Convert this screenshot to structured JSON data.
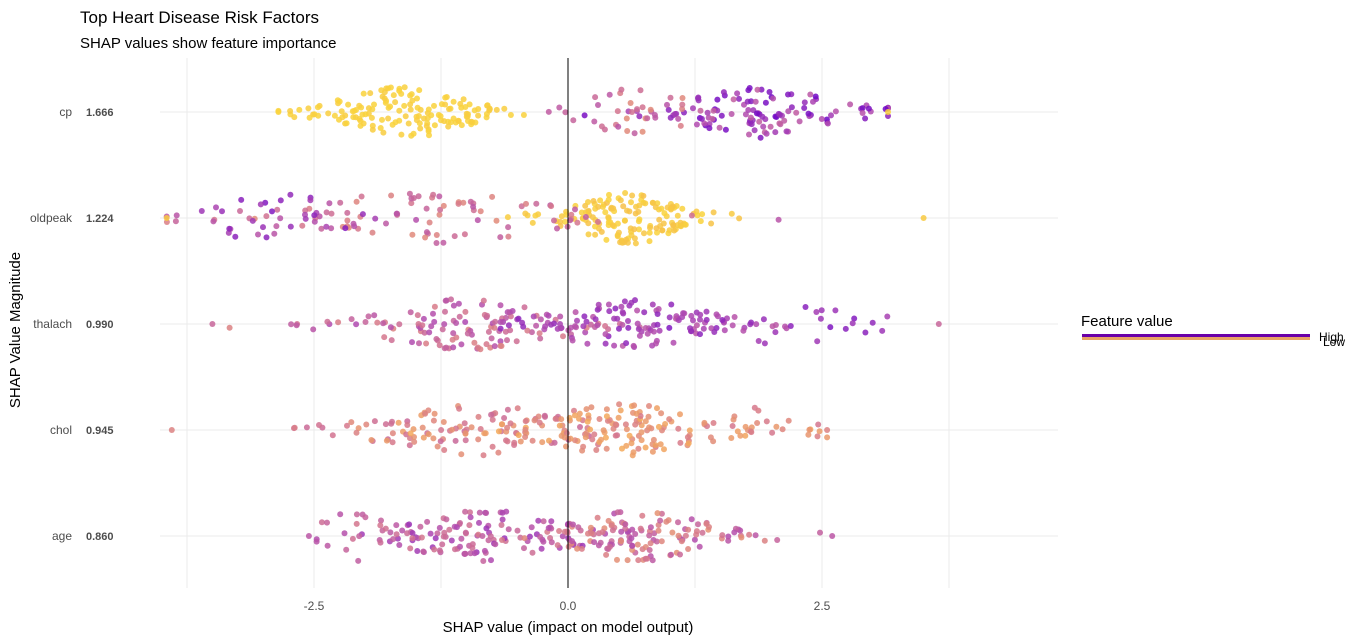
{
  "chart_data": {
    "type": "scatter",
    "title": "Top Heart Disease Risk Factors",
    "subtitle": "SHAP values show feature importance",
    "xlabel": "SHAP value (impact on model output)",
    "ylabel": "SHAP Value Magnitude",
    "xlim": [
      -4.0,
      4.8
    ],
    "x_ticks": [
      -2.5,
      0.0,
      2.5
    ],
    "x_tick_labels": [
      "-2.5",
      "0.0",
      "2.5"
    ],
    "grid": true,
    "zero_line": true,
    "legend": {
      "title": "Feature value",
      "high_label": "High",
      "low_label": "Low",
      "placement": "right",
      "high_color": "#6a00a8",
      "mid_color": "#d6568a",
      "low_color": "#f9d23c"
    },
    "features": [
      {
        "name": "cp",
        "magnitude": "1.666",
        "shap_min": -2.85,
        "shap_max": 3.15,
        "clusters": [
          {
            "center": -1.6,
            "spread": 0.55,
            "count": 150,
            "fv": 0.0,
            "fv_spread": 0.04
          },
          {
            "center": 1.9,
            "spread": 0.6,
            "count": 120,
            "fv": 0.82,
            "fv_spread": 0.18
          },
          {
            "center": 0.7,
            "spread": 0.45,
            "count": 35,
            "fv": 0.55,
            "fv_spread": 0.15
          }
        ]
      },
      {
        "name": "oldpeak",
        "magnitude": "1.224",
        "shap_min": -3.95,
        "shap_max": 3.5,
        "clusters": [
          {
            "center": 0.6,
            "spread": 0.45,
            "count": 150,
            "fv": 0.05,
            "fv_spread": 0.06
          },
          {
            "center": -1.4,
            "spread": 1.1,
            "count": 90,
            "fv": 0.55,
            "fv_spread": 0.15
          },
          {
            "center": -2.9,
            "spread": 0.6,
            "count": 35,
            "fv": 0.8,
            "fv_spread": 0.12
          }
        ]
      },
      {
        "name": "thalach",
        "magnitude": "0.990",
        "shap_min": -3.5,
        "shap_max": 3.65,
        "clusters": [
          {
            "center": -1.0,
            "spread": 0.8,
            "count": 120,
            "fv": 0.6,
            "fv_spread": 0.15
          },
          {
            "center": 0.6,
            "spread": 0.65,
            "count": 130,
            "fv": 0.78,
            "fv_spread": 0.1
          },
          {
            "center": 2.3,
            "spread": 0.6,
            "count": 20,
            "fv": 0.85,
            "fv_spread": 0.08
          }
        ]
      },
      {
        "name": "chol",
        "magnitude": "0.945",
        "shap_min": -3.9,
        "shap_max": 2.55,
        "clusters": [
          {
            "center": -0.9,
            "spread": 0.8,
            "count": 110,
            "fv": 0.45,
            "fv_spread": 0.15
          },
          {
            "center": 0.55,
            "spread": 0.7,
            "count": 140,
            "fv": 0.38,
            "fv_spread": 0.13
          },
          {
            "center": 2.0,
            "spread": 0.4,
            "count": 15,
            "fv": 0.42,
            "fv_spread": 0.1
          }
        ]
      },
      {
        "name": "age",
        "magnitude": "0.860",
        "shap_min": -2.55,
        "shap_max": 2.6,
        "clusters": [
          {
            "center": -0.8,
            "spread": 0.7,
            "count": 130,
            "fv": 0.68,
            "fv_spread": 0.15
          },
          {
            "center": 0.7,
            "spread": 0.6,
            "count": 130,
            "fv": 0.55,
            "fv_spread": 0.18
          },
          {
            "center": -2.1,
            "spread": 0.3,
            "count": 20,
            "fv": 0.6,
            "fv_spread": 0.1
          }
        ]
      }
    ]
  }
}
